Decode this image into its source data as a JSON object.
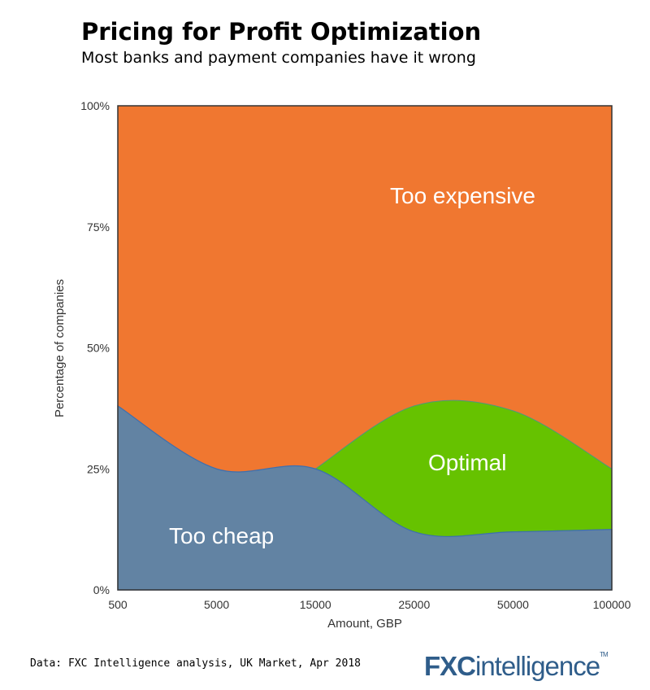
{
  "chart_data": {
    "type": "area",
    "title": "Pricing for Profit Optimization",
    "subtitle": "Most banks and payment companies have it wrong",
    "xlabel": "Amount, GBP",
    "ylabel": "Percentage of companies",
    "categories": [
      "500",
      "5000",
      "15000",
      "25000",
      "50000",
      "100000"
    ],
    "yticks": [
      "0%",
      "25%",
      "50%",
      "75%",
      "100%"
    ],
    "ylim": [
      0,
      100
    ],
    "stacked": true,
    "series": [
      {
        "name": "Too cheap",
        "values": [
          38,
          25,
          25,
          12,
          12,
          12.5
        ],
        "color": "#6283a3"
      },
      {
        "name": "Optimal",
        "values": [
          0,
          0,
          0,
          26,
          25,
          12.5
        ],
        "color": "#66c200"
      },
      {
        "name": "Too expensive",
        "values": [
          62,
          75,
          75,
          62,
          63,
          75
        ],
        "color": "#f07730"
      }
    ],
    "grid": false,
    "legend": "none (labels inside areas)"
  },
  "footer": {
    "source": "Data: FXC Intelligence analysis, UK Market, Apr 2018",
    "logo": "FXCintelligence"
  }
}
